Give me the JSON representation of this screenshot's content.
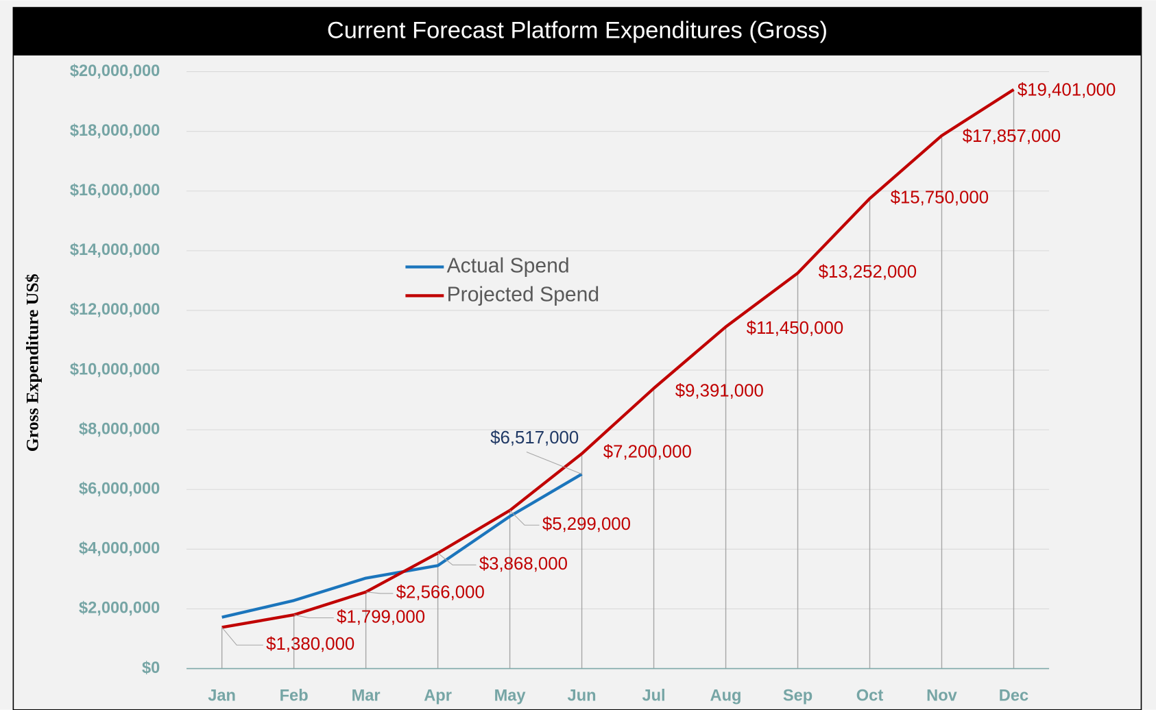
{
  "chart_data": {
    "type": "line",
    "title": "Current Forecast Platform Expenditures (Gross)",
    "y_label": "Gross Expenditure US$",
    "categories": [
      "Jan",
      "Feb",
      "Mar",
      "Apr",
      "May",
      "Jun",
      "Jul",
      "Aug",
      "Sep",
      "Oct",
      "Nov",
      "Dec"
    ],
    "series": [
      {
        "name": "Actual Spend",
        "color": "#1b75bc",
        "values": [
          1720000,
          2280000,
          3030000,
          3450000,
          5100000,
          6517000,
          null,
          null,
          null,
          null,
          null,
          null
        ],
        "value_labels": [
          null,
          null,
          null,
          null,
          null,
          "$6,517,000",
          null,
          null,
          null,
          null,
          null,
          null
        ]
      },
      {
        "name": "Projected Spend",
        "color": "#c00000",
        "values": [
          1380000,
          1799000,
          2566000,
          3868000,
          5299000,
          7200000,
          9391000,
          11450000,
          13252000,
          15750000,
          17857000,
          19401000
        ],
        "value_labels": [
          "$1,380,000",
          "$1,799,000",
          "$2,566,000",
          "$3,868,000",
          "$5,299,000",
          "$7,200,000",
          "$9,391,000",
          "$11,450,000",
          "$13,252,000",
          "$15,750,000",
          "$17,857,000",
          "$19,401,000"
        ]
      }
    ],
    "ylim": [
      0,
      20000000
    ],
    "yticks": [
      {
        "value": 0,
        "label": "$0"
      },
      {
        "value": 2000000,
        "label": "$2,000,000"
      },
      {
        "value": 4000000,
        "label": "$4,000,000"
      },
      {
        "value": 6000000,
        "label": "$6,000,000"
      },
      {
        "value": 8000000,
        "label": "$8,000,000"
      },
      {
        "value": 10000000,
        "label": "$10,000,000"
      },
      {
        "value": 12000000,
        "label": "$12,000,000"
      },
      {
        "value": 14000000,
        "label": "$14,000,000"
      },
      {
        "value": 16000000,
        "label": "$16,000,000"
      },
      {
        "value": 18000000,
        "label": "$18,000,000"
      },
      {
        "value": 20000000,
        "label": "$20,000,000"
      }
    ],
    "grid": true
  }
}
